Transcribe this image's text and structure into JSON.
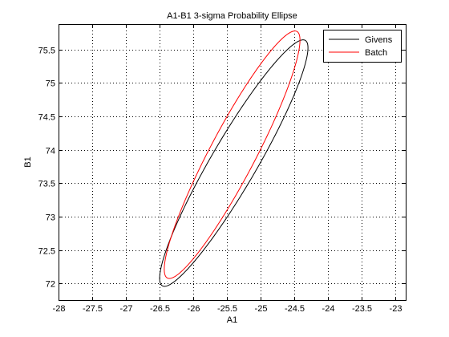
{
  "chart_data": {
    "type": "line",
    "title": "A1-B1 3-sigma Probability Ellipse",
    "xlabel": "A1",
    "ylabel": "B1",
    "xlim": [
      -28,
      -22.85
    ],
    "ylim": [
      71.75,
      75.88
    ],
    "xticks": [
      -28,
      -27.5,
      -27,
      -26.5,
      -26,
      -25.5,
      -25,
      -24.5,
      -24,
      -23.5,
      -23
    ],
    "yticks": [
      72,
      72.5,
      73,
      73.5,
      74,
      74.5,
      75,
      75.5
    ],
    "grid": true,
    "grid_style": "dotted",
    "legend_position": "top-right",
    "series": [
      {
        "name": "Givens",
        "color": "#000000",
        "ellipse": {
          "center": [
            -25.4,
            73.8
          ],
          "semi_major": 2.12,
          "semi_minor": 0.34,
          "angle_deg": 60.0
        }
      },
      {
        "name": "Batch",
        "color": "#ff0000",
        "ellipse": {
          "center": [
            -25.425,
            73.925
          ],
          "semi_major": 2.08,
          "semi_minor": 0.34,
          "angle_deg": 62.5
        }
      }
    ]
  }
}
